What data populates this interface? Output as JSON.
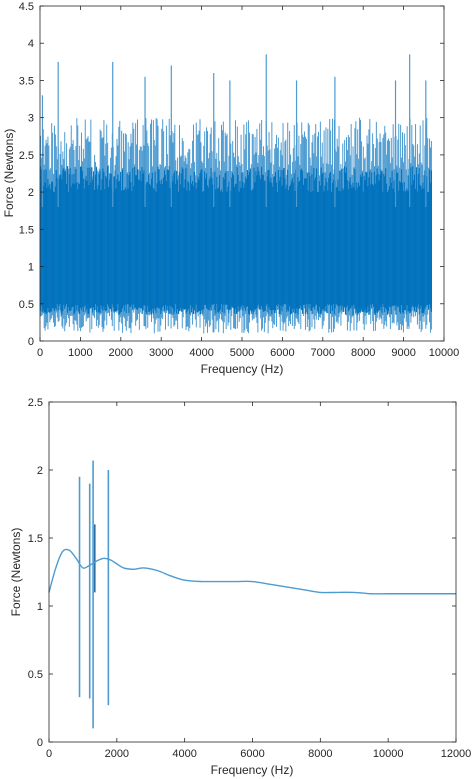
{
  "chart_data": [
    {
      "type": "line",
      "title": "",
      "xlabel": "Frequency (Hz)",
      "ylabel": "Force (Newtons)",
      "xlim": [
        0,
        10000
      ],
      "ylim": [
        0,
        4.5
      ],
      "xticks": [
        0,
        1000,
        2000,
        3000,
        4000,
        5000,
        6000,
        7000,
        8000,
        9000,
        10000
      ],
      "yticks": [
        0,
        0.5,
        1,
        1.5,
        2,
        2.5,
        3,
        3.5,
        4,
        4.5
      ],
      "grid": false,
      "color": "#0072bd",
      "series": [
        {
          "x_range": [
            0,
            9700
          ],
          "mean": 1.1,
          "dense_band": [
            0.5,
            2.0
          ],
          "typical_range": [
            0.1,
            3.0
          ],
          "peaks": [
            {
              "x": 60,
              "y": 3.3
            },
            {
              "x": 450,
              "y": 3.75
            },
            {
              "x": 1800,
              "y": 3.75
            },
            {
              "x": 2600,
              "y": 3.55
            },
            {
              "x": 3250,
              "y": 3.7
            },
            {
              "x": 4300,
              "y": 3.6
            },
            {
              "x": 4700,
              "y": 3.5
            },
            {
              "x": 5600,
              "y": 3.85
            },
            {
              "x": 6350,
              "y": 3.5
            },
            {
              "x": 7300,
              "y": 3.55
            },
            {
              "x": 8800,
              "y": 3.5
            },
            {
              "x": 9150,
              "y": 3.85
            },
            {
              "x": 9550,
              "y": 3.5
            }
          ]
        }
      ]
    },
    {
      "type": "line",
      "title": "",
      "xlabel": "Frequency (Hz)",
      "ylabel": "Force (Newtons)",
      "xlim": [
        0,
        12000
      ],
      "ylim": [
        0,
        2.5
      ],
      "xticks": [
        0,
        2000,
        4000,
        6000,
        8000,
        10000,
        12000
      ],
      "yticks": [
        0,
        0.5,
        1,
        1.5,
        2,
        2.5
      ],
      "grid": false,
      "color": "#4d9bd1",
      "series": [
        {
          "x": [
            0,
            200,
            400,
            600,
            800,
            1000,
            1200,
            1400,
            1600,
            1800,
            2000,
            2200,
            2500,
            2800,
            3200,
            3600,
            4000,
            4500,
            5000,
            5500,
            6000,
            6500,
            7000,
            7500,
            8000,
            8500,
            9000,
            9500,
            10000,
            11000,
            12000
          ],
          "y": [
            1.1,
            1.28,
            1.4,
            1.41,
            1.35,
            1.28,
            1.3,
            1.33,
            1.35,
            1.34,
            1.31,
            1.28,
            1.27,
            1.28,
            1.26,
            1.22,
            1.19,
            1.18,
            1.18,
            1.18,
            1.18,
            1.16,
            1.14,
            1.12,
            1.1,
            1.1,
            1.1,
            1.09,
            1.09,
            1.09,
            1.09
          ]
        }
      ],
      "spikes": [
        {
          "x": 900,
          "ymin": 0.33,
          "ymax": 1.95
        },
        {
          "x": 1200,
          "ymin": 0.32,
          "ymax": 1.9
        },
        {
          "x": 1300,
          "ymin": 0.1,
          "ymax": 2.07
        },
        {
          "x": 1350,
          "ymin": 1.1,
          "ymax": 1.6
        },
        {
          "x": 1750,
          "ymin": 0.27,
          "ymax": 2.0
        }
      ]
    }
  ]
}
